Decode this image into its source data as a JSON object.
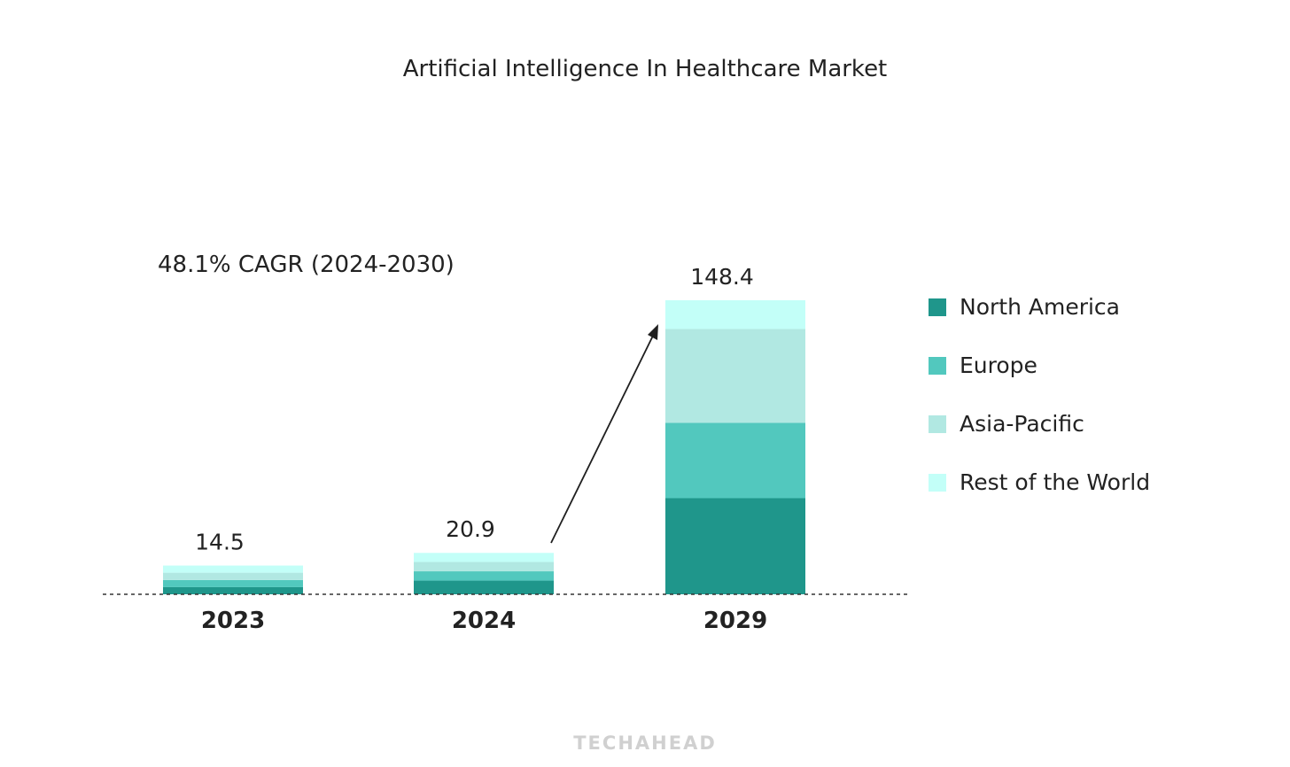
{
  "chart_data": {
    "type": "bar",
    "stacked": true,
    "title": "Artificial Intelligence In Healthcare Market",
    "annotation": "48.1% CAGR (2024-2030)",
    "categories": [
      "2023",
      "2024",
      "2029"
    ],
    "totals": [
      14.5,
      20.9,
      148.4
    ],
    "series": [
      {
        "name": "North America",
        "color": "#1f968b",
        "values": [
          3.6,
          6.9,
          48.5
        ]
      },
      {
        "name": "Europe",
        "color": "#52c8be",
        "values": [
          3.6,
          4.7,
          38.0
        ]
      },
      {
        "name": "Asia-Pacific",
        "color": "#b1e8e2",
        "values": [
          3.7,
          4.7,
          47.4
        ]
      },
      {
        "name": "Rest of the World",
        "color": "#c3fff8",
        "values": [
          3.6,
          4.6,
          14.5
        ]
      }
    ],
    "ylim": [
      0,
      148.4
    ],
    "legend_position": "right",
    "grid": false,
    "baseline": "dotted"
  },
  "footer": {
    "brand": "TECHAHEAD"
  }
}
